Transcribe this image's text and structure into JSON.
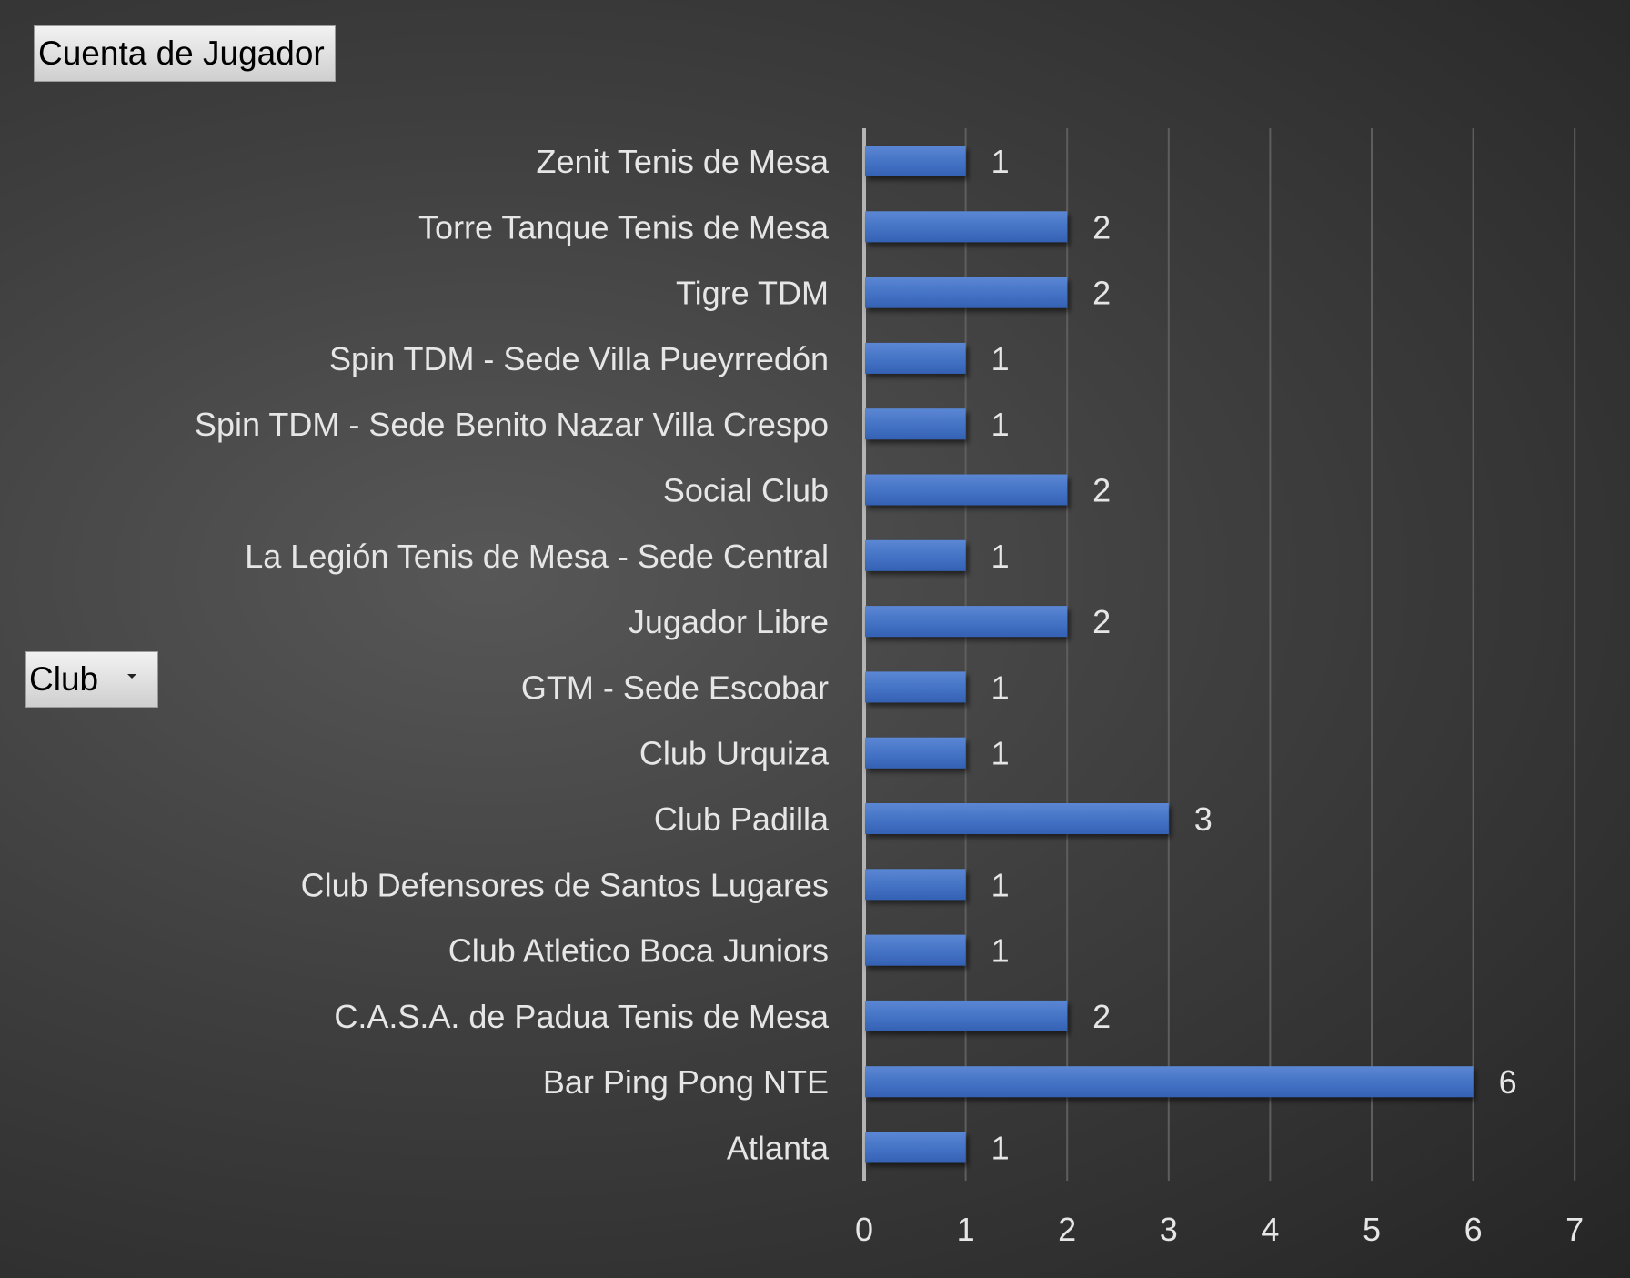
{
  "pivot": {
    "value_button": "Cuenta de Jugador",
    "field_button": "Club"
  },
  "icons": {
    "dropdown": "chevron-down-icon"
  },
  "colors": {
    "bar": "#4472c4",
    "background": "#404040",
    "text": "#e6e6e6",
    "gridline": "#5a5a5a"
  },
  "chart_data": {
    "type": "bar",
    "orientation": "horizontal",
    "categories": [
      "Zenit Tenis de Mesa",
      "Torre Tanque Tenis de Mesa",
      "Tigre TDM",
      "Spin TDM - Sede Villa Pueyrredón",
      "Spin TDM - Sede Benito Nazar Villa Crespo",
      "Social Club",
      "La Legión Tenis de Mesa - Sede Central",
      "Jugador Libre",
      "GTM - Sede Escobar",
      "Club Urquiza",
      "Club Padilla",
      "Club Defensores de Santos Lugares",
      "Club Atletico Boca Juniors",
      "C.A.S.A. de Padua Tenis de Mesa",
      "Bar Ping Pong NTE",
      "Atlanta"
    ],
    "values": [
      1,
      2,
      2,
      1,
      1,
      2,
      1,
      2,
      1,
      1,
      3,
      1,
      1,
      2,
      6,
      1
    ],
    "xlim": [
      0,
      7
    ],
    "xticks": [
      "0",
      "1",
      "2",
      "3",
      "4",
      "5",
      "6",
      "7"
    ],
    "data_labels": true,
    "grid": true,
    "legend": "none"
  }
}
